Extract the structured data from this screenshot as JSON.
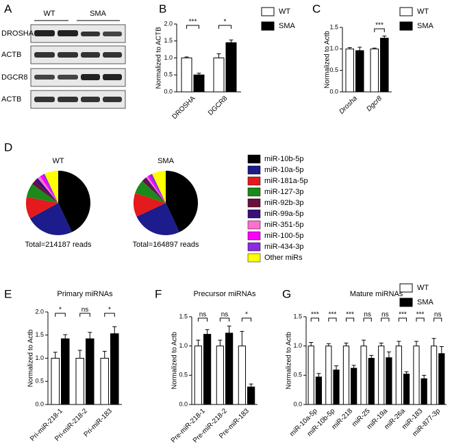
{
  "blot": {
    "panel": "A",
    "groups": [
      "WT",
      "SMA"
    ],
    "rows": [
      "DROSHA",
      "ACTB",
      "DGCR8",
      "ACTB"
    ]
  },
  "chart_data": [
    {
      "type": "bar",
      "panel": "B",
      "ylabel": "Normalized to ACTB",
      "categories": [
        "DROSHA",
        "DGCR8"
      ],
      "series": [
        {
          "name": "WT",
          "color": "#ffffff",
          "values": [
            1.0,
            1.0
          ],
          "errors": [
            0.03,
            0.12
          ]
        },
        {
          "name": "SMA",
          "color": "#000000",
          "values": [
            0.5,
            1.45
          ],
          "errors": [
            0.05,
            0.08
          ]
        }
      ],
      "annotations": [
        "***",
        "*"
      ],
      "ylim": [
        0,
        2
      ],
      "yticks": [
        {
          "value": 0,
          "label": "0.0"
        },
        0.5,
        {
          "value": 1,
          "label": "1.0"
        },
        1.5,
        {
          "value": 2,
          "label": "2.0"
        }
      ],
      "legend": "right"
    },
    {
      "type": "bar",
      "panel": "C",
      "ylabel": "Normalized to Actb",
      "categories": [
        "Drosha",
        "Dgcr8"
      ],
      "category_style": "italic",
      "series": [
        {
          "name": "WT",
          "color": "#ffffff",
          "values": [
            1.0,
            1.0
          ],
          "errors": [
            0.03,
            0.02
          ]
        },
        {
          "name": "SMA",
          "color": "#000000",
          "values": [
            0.96,
            1.25
          ],
          "errors": [
            0.08,
            0.05
          ]
        }
      ],
      "annotations": [
        null,
        "***"
      ],
      "ylim": [
        0,
        1.5
      ],
      "yticks": [
        {
          "value": 0,
          "label": "0.0"
        },
        0.5,
        {
          "value": 1,
          "label": "1.0"
        },
        1.5
      ],
      "legend": "right"
    },
    {
      "type": "pie",
      "panel": "D",
      "categories": [
        "miR-10b-5p",
        "miR-10a-5p",
        "miR-181a-5p",
        "miR-127-3p",
        "miR-92b-3p",
        "miR-99a-5p",
        "miR-351-5p",
        "miR-100-5p",
        "miR-434-3p",
        "Other miRs"
      ],
      "colors": [
        "#000000",
        "#1c1c8c",
        "#e41a1c",
        "#1a8a1a",
        "#6b0f3a",
        "#3a0f7a",
        "#ff6fcf",
        "#ff00ff",
        "#8a2be2",
        "#ffff00"
      ],
      "series": [
        {
          "name": "WT",
          "values": [
            43,
            24,
            11,
            7,
            2,
            2,
            1.5,
            1.5,
            1,
            7
          ],
          "total_label": "Total=214187 reads"
        },
        {
          "name": "SMA",
          "values": [
            43,
            25,
            12,
            7,
            1.5,
            1,
            1,
            1,
            1.5,
            7
          ],
          "total_label": "Total=164897 reads"
        }
      ]
    },
    {
      "type": "bar",
      "panel": "E",
      "title": "Primary miRNAs",
      "ylabel": "Normalized to Actb",
      "categories": [
        "Pri-miR-218-1",
        "Pri-miR-218-2",
        "Pri-miR-183"
      ],
      "series": [
        {
          "name": "WT",
          "color": "#ffffff",
          "values": [
            1.0,
            1.0,
            1.0
          ],
          "errors": [
            0.13,
            0.17,
            0.15
          ]
        },
        {
          "name": "SMA",
          "color": "#000000",
          "values": [
            1.42,
            1.42,
            1.53
          ],
          "errors": [
            0.09,
            0.14,
            0.15
          ]
        }
      ],
      "annotations": [
        "*",
        "ns",
        "*"
      ],
      "ylim": [
        0,
        2
      ],
      "yticks": [
        {
          "value": 0,
          "label": "0.0"
        },
        0.5,
        {
          "value": 1,
          "label": "1.0"
        },
        1.5,
        {
          "value": 2,
          "label": "2.0"
        }
      ]
    },
    {
      "type": "bar",
      "panel": "F",
      "title": "Precursor miRNAs",
      "ylabel": "Normalized to Actb",
      "categories": [
        "Pre-miR-218-1",
        "Pre-miR-218-2",
        "Pre-miR-183"
      ],
      "series": [
        {
          "name": "WT",
          "color": "#ffffff",
          "values": [
            1.0,
            1.0,
            1.0
          ],
          "errors": [
            0.1,
            0.1,
            0.25
          ]
        },
        {
          "name": "SMA",
          "color": "#000000",
          "values": [
            1.2,
            1.22,
            0.3
          ],
          "errors": [
            0.08,
            0.12,
            0.05
          ]
        }
      ],
      "annotations": [
        "ns",
        "ns",
        "*"
      ],
      "ylim": [
        0,
        1.5
      ],
      "yticks": [
        {
          "value": 0,
          "label": "0.0"
        },
        0.5,
        {
          "value": 1,
          "label": "1.0"
        },
        1.5
      ]
    },
    {
      "type": "bar",
      "panel": "G",
      "title": "Mature miRNAs",
      "ylabel": "Normalized to Actb",
      "categories": [
        "miR-10a-5p",
        "miR-10b-5p",
        "miR-218",
        "miR-25",
        "miR-19a",
        "miR-26a",
        "miR-183",
        "miR-877-3p"
      ],
      "series": [
        {
          "name": "WT",
          "color": "#ffffff",
          "values": [
            1,
            1,
            1,
            1,
            1,
            1,
            1,
            1
          ],
          "errors": [
            0.06,
            0.04,
            0.05,
            0.1,
            0.05,
            0.08,
            0.08,
            0.13
          ]
        },
        {
          "name": "SMA",
          "color": "#000000",
          "values": [
            0.47,
            0.59,
            0.62,
            0.79,
            0.8,
            0.52,
            0.44,
            0.87
          ],
          "errors": [
            0.06,
            0.07,
            0.05,
            0.05,
            0.1,
            0.04,
            0.06,
            0.12
          ]
        }
      ],
      "annotations": [
        "***",
        "***",
        "***",
        "ns",
        "ns",
        "***",
        "***",
        "ns"
      ],
      "ylim": [
        0,
        1.5
      ],
      "yticks": [
        {
          "value": 0,
          "label": "0.0"
        },
        0.5,
        {
          "value": 1,
          "label": "1.0"
        },
        1.5
      ],
      "legend": "top-right"
    }
  ]
}
